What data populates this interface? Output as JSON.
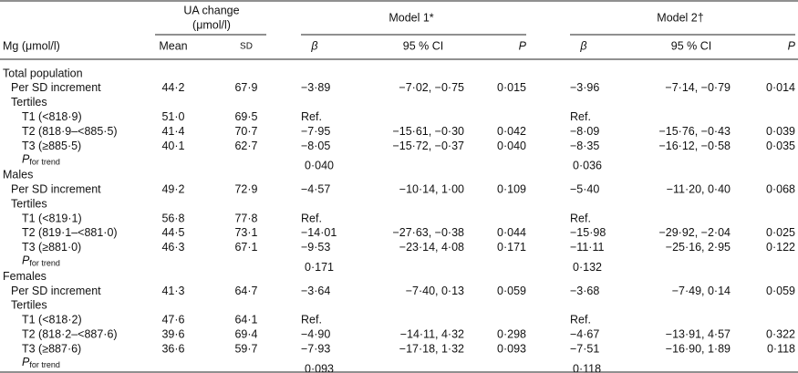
{
  "header": {
    "ua_change": "UA change",
    "ua_unit": "(μmol/l)",
    "model1": "Model 1*",
    "model2": "Model 2†",
    "mg": "Mg (μmol/l)",
    "mean": "Mean",
    "sd": "SD",
    "beta1": "β",
    "ci1": "95 % CI",
    "p1": "P",
    "beta2": "β",
    "ci2": "95 % CI",
    "p2": "P"
  },
  "groups": [
    {
      "name": "Total population",
      "per_sd": {
        "label": "Per SD increment",
        "mean": "44·2",
        "sd": "67·9",
        "beta1": "−3·89",
        "ci1": "−7·02, −0·75",
        "p1": "0·015",
        "beta2": "−3·96",
        "ci2": "−7·14, −0·79",
        "p2": "0·014"
      },
      "tertiles_label": "Tertiles",
      "tertiles": [
        {
          "label": "T1 (<818·9)",
          "mean": "51·0",
          "sd": "69·5",
          "beta1": "Ref.",
          "beta2": "Ref."
        },
        {
          "label": "T2 (818·9–<885·5)",
          "mean": "41·4",
          "sd": "70·7",
          "beta1": "−7·95",
          "ci1": "−15·61, −0·30",
          "p1": "0·042",
          "beta2": "−8·09",
          "ci2": "−15·76, −0·43",
          "p2": "0·039"
        },
        {
          "label": "T3 (≥885·5)",
          "mean": "40·1",
          "sd": "62·7",
          "beta1": "−8·05",
          "ci1": "−15·72, −0·37",
          "p1": "0·040",
          "beta2": "−8·35",
          "ci2": "−16·12, −0·58",
          "p2": "0·035"
        }
      ],
      "trend": {
        "label": "P",
        "label_sub": "for trend",
        "trend1": "0·040",
        "trend2": "0·036"
      }
    },
    {
      "name": "Males",
      "per_sd": {
        "label": "Per SD increment",
        "mean": "49·2",
        "sd": "72·9",
        "beta1": "−4·57",
        "ci1": "−10·14, 1·00",
        "p1": "0·109",
        "beta2": "−5·40",
        "ci2": "−11·20, 0·40",
        "p2": "0·068"
      },
      "tertiles_label": "Tertiles",
      "tertiles": [
        {
          "label": "T1 (<819·1)",
          "mean": "56·8",
          "sd": "77·8",
          "beta1": "Ref.",
          "beta2": "Ref."
        },
        {
          "label": "T2 (819·1–<881·0)",
          "mean": "44·5",
          "sd": "73·1",
          "beta1": "−14·01",
          "ci1": "−27·63, −0·38",
          "p1": "0·044",
          "beta2": "−15·98",
          "ci2": "−29·92, −2·04",
          "p2": "0·025"
        },
        {
          "label": "T3 (≥881·0)",
          "mean": "46·3",
          "sd": "67·1",
          "beta1": "−9·53",
          "ci1": "−23·14, 4·08",
          "p1": "0·171",
          "beta2": "−11·11",
          "ci2": "−25·16, 2·95",
          "p2": "0·122"
        }
      ],
      "trend": {
        "label": "P",
        "label_sub": "for trend",
        "trend1": "0·171",
        "trend2": "0·132"
      }
    },
    {
      "name": "Females",
      "per_sd": {
        "label": "Per SD increment",
        "mean": "41·3",
        "sd": "64·7",
        "beta1": "−3·64",
        "ci1": "−7·40, 0·13",
        "p1": "0·059",
        "beta2": "−3·68",
        "ci2": "−7·49, 0·14",
        "p2": "0·059"
      },
      "tertiles_label": "Tertiles",
      "tertiles": [
        {
          "label": "T1 (<818·2)",
          "mean": "47·6",
          "sd": "64·1",
          "beta1": "Ref.",
          "beta2": "Ref."
        },
        {
          "label": "T2 (818·2–<887·6)",
          "mean": "39·6",
          "sd": "69·4",
          "beta1": "−4·90",
          "ci1": "−14·11, 4·32",
          "p1": "0·298",
          "beta2": "−4·67",
          "ci2": "−13·91, 4·57",
          "p2": "0·322"
        },
        {
          "label": "T3 (≥887·6)",
          "mean": "36·6",
          "sd": "59·7",
          "beta1": "−7·93",
          "ci1": "−17·18, 1·32",
          "p1": "0·093",
          "beta2": "−7·51",
          "ci2": "−16·90, 1·89",
          "p2": "0·118"
        }
      ],
      "trend": {
        "label": "P",
        "label_sub": "for trend",
        "trend1": "0·093",
        "trend2": "0·118"
      }
    }
  ]
}
